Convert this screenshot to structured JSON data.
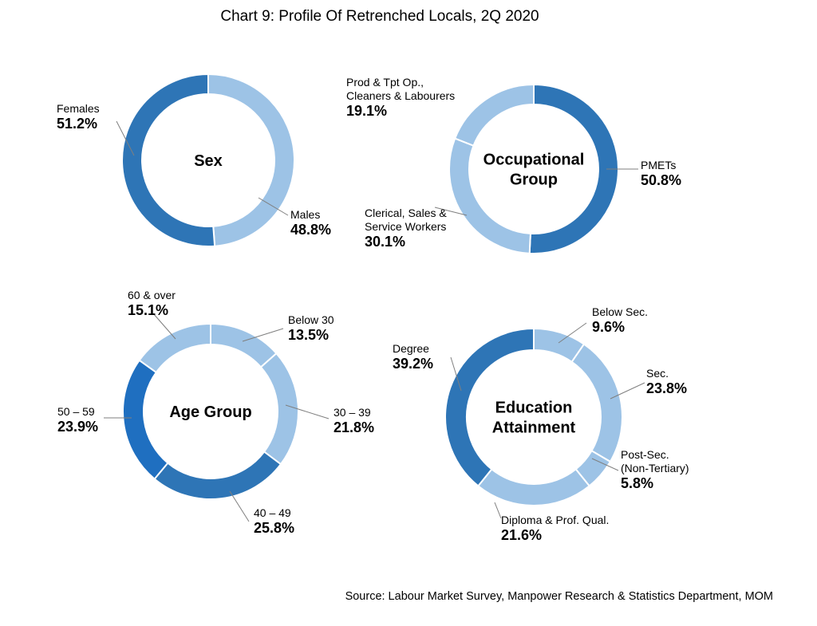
{
  "title": "Chart 9: Profile Of Retrenched Locals, 2Q 2020",
  "source": "Source: Labour Market Survey, Manpower Research & Statistics Department, MOM",
  "colors": {
    "dark": "#2E75B6",
    "light": "#9DC3E6",
    "darkest": "#1F6FC0"
  },
  "chart_data": [
    {
      "type": "pie",
      "center_label": [
        "Sex"
      ],
      "slices": [
        {
          "lines": [
            "Males"
          ],
          "value_label": "48.8%",
          "value": 48.8,
          "shade": "light"
        },
        {
          "lines": [
            "Females"
          ],
          "value_label": "51.2%",
          "value": 51.2,
          "shade": "dark"
        }
      ]
    },
    {
      "type": "pie",
      "center_label": [
        "Occupational",
        "Group"
      ],
      "slices": [
        {
          "lines": [
            "PMETs"
          ],
          "value_label": "50.8%",
          "value": 50.8,
          "shade": "dark"
        },
        {
          "lines": [
            "Clerical, Sales &",
            "Service Workers"
          ],
          "value_label": "30.1%",
          "value": 30.1,
          "shade": "light"
        },
        {
          "lines": [
            "Prod & Tpt Op.,",
            "Cleaners & Labourers"
          ],
          "value_label": "19.1%",
          "value": 19.1,
          "shade": "light"
        }
      ]
    },
    {
      "type": "pie",
      "center_label": [
        "Age Group"
      ],
      "slices": [
        {
          "lines": [
            "Below 30"
          ],
          "value_label": "13.5%",
          "value": 13.5,
          "shade": "light"
        },
        {
          "lines": [
            "30 – 39"
          ],
          "value_label": "21.8%",
          "value": 21.8,
          "shade": "light"
        },
        {
          "lines": [
            "40 – 49"
          ],
          "value_label": "25.8%",
          "value": 25.8,
          "shade": "dark"
        },
        {
          "lines": [
            "50 – 59"
          ],
          "value_label": "23.9%",
          "value": 23.9,
          "shade": "darkest"
        },
        {
          "lines": [
            "60 & over"
          ],
          "value_label": "15.1%",
          "value": 15.1,
          "shade": "light"
        }
      ]
    },
    {
      "type": "pie",
      "center_label": [
        "Education",
        "Attainment"
      ],
      "slices": [
        {
          "lines": [
            "Below Sec."
          ],
          "value_label": "9.6%",
          "value": 9.6,
          "shade": "light"
        },
        {
          "lines": [
            "Sec."
          ],
          "value_label": "23.8%",
          "value": 23.8,
          "shade": "light"
        },
        {
          "lines": [
            "Post-Sec.",
            "(Non-Tertiary)"
          ],
          "value_label": "5.8%",
          "value": 5.8,
          "shade": "light"
        },
        {
          "lines": [
            "Diploma & Prof. Qual."
          ],
          "value_label": "21.6%",
          "value": 21.6,
          "shade": "light"
        },
        {
          "lines": [
            "Degree"
          ],
          "value_label": "39.2%",
          "value": 39.2,
          "shade": "dark"
        }
      ]
    }
  ]
}
